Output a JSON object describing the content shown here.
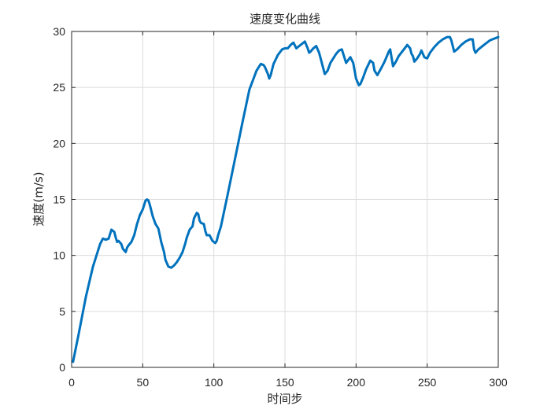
{
  "chart_data": {
    "type": "line",
    "title": "速度变化曲线",
    "xlabel": "时间步",
    "ylabel": "速度(m/s)",
    "xlim": [
      0,
      300
    ],
    "ylim": [
      0,
      30
    ],
    "xticks": [
      0,
      50,
      100,
      150,
      200,
      250,
      300
    ],
    "yticks": [
      0,
      5,
      10,
      15,
      20,
      25,
      30
    ],
    "grid": true,
    "line_color": "#0072BD",
    "series": [
      {
        "x": [
          1,
          5,
          10,
          15,
          20,
          22,
          24,
          26,
          28,
          29,
          30,
          31,
          32,
          33,
          35,
          36,
          38,
          39,
          40,
          42,
          44,
          46,
          48,
          50,
          52,
          53,
          54,
          55,
          57,
          59,
          61,
          63,
          65,
          66,
          68,
          70,
          72,
          74,
          76,
          78,
          80,
          81,
          83,
          85,
          86,
          88,
          89,
          90,
          91,
          93,
          94,
          95,
          97,
          99,
          101,
          102,
          103,
          105,
          110,
          115,
          120,
          125,
          130,
          133,
          135,
          136,
          138,
          139,
          140,
          141,
          142,
          145,
          148,
          150,
          152,
          154,
          156,
          158,
          160,
          162,
          164,
          166,
          167,
          168,
          170,
          172,
          174,
          178,
          180,
          182,
          184,
          186,
          188,
          190,
          193,
          196,
          198,
          200,
          202,
          203,
          205,
          207,
          210,
          212,
          213,
          215,
          218,
          220,
          222,
          223,
          224,
          226,
          228,
          230,
          233,
          236,
          238,
          239,
          240,
          241,
          243,
          245,
          246,
          248,
          250,
          252,
          255,
          258,
          261,
          264,
          266,
          267,
          269,
          271,
          274,
          277,
          280,
          282,
          283,
          284,
          286,
          290,
          294,
          298,
          300
        ],
        "y": [
          0.5,
          3.0,
          6.3,
          9.0,
          11.0,
          11.5,
          11.4,
          11.5,
          12.3,
          12.2,
          12.1,
          11.6,
          11.2,
          11.3,
          11.0,
          10.6,
          10.3,
          10.7,
          10.9,
          11.2,
          11.8,
          12.8,
          13.6,
          14.1,
          14.9,
          15.0,
          14.9,
          14.5,
          13.5,
          12.8,
          12.4,
          11.2,
          10.3,
          9.6,
          9.0,
          8.9,
          9.1,
          9.4,
          9.8,
          10.3,
          11.1,
          11.6,
          12.3,
          12.6,
          13.3,
          13.8,
          13.7,
          13.1,
          12.9,
          12.8,
          12.2,
          11.8,
          11.8,
          11.3,
          11.1,
          11.3,
          11.8,
          12.6,
          15.6,
          18.7,
          21.8,
          24.8,
          26.5,
          27.1,
          27.0,
          26.8,
          26.2,
          25.8,
          26.1,
          26.6,
          27.1,
          27.9,
          28.4,
          28.5,
          28.5,
          28.8,
          29.0,
          28.5,
          28.7,
          28.9,
          29.1,
          28.5,
          28.1,
          28.2,
          28.5,
          28.7,
          28.1,
          26.2,
          26.5,
          27.2,
          27.6,
          28.0,
          28.3,
          28.4,
          27.2,
          27.7,
          27.2,
          25.8,
          25.2,
          25.3,
          25.9,
          26.6,
          27.4,
          27.2,
          26.5,
          26.1,
          26.8,
          27.3,
          27.9,
          28.2,
          28.4,
          26.9,
          27.3,
          27.8,
          28.3,
          28.8,
          28.5,
          28.0,
          27.8,
          27.3,
          27.6,
          28.0,
          28.3,
          27.7,
          27.6,
          28.1,
          28.6,
          29.0,
          29.3,
          29.5,
          29.5,
          29.2,
          28.2,
          28.4,
          28.8,
          29.1,
          29.3,
          29.3,
          28.4,
          28.1,
          28.4,
          28.8,
          29.2,
          29.4,
          29.5
        ]
      }
    ]
  }
}
